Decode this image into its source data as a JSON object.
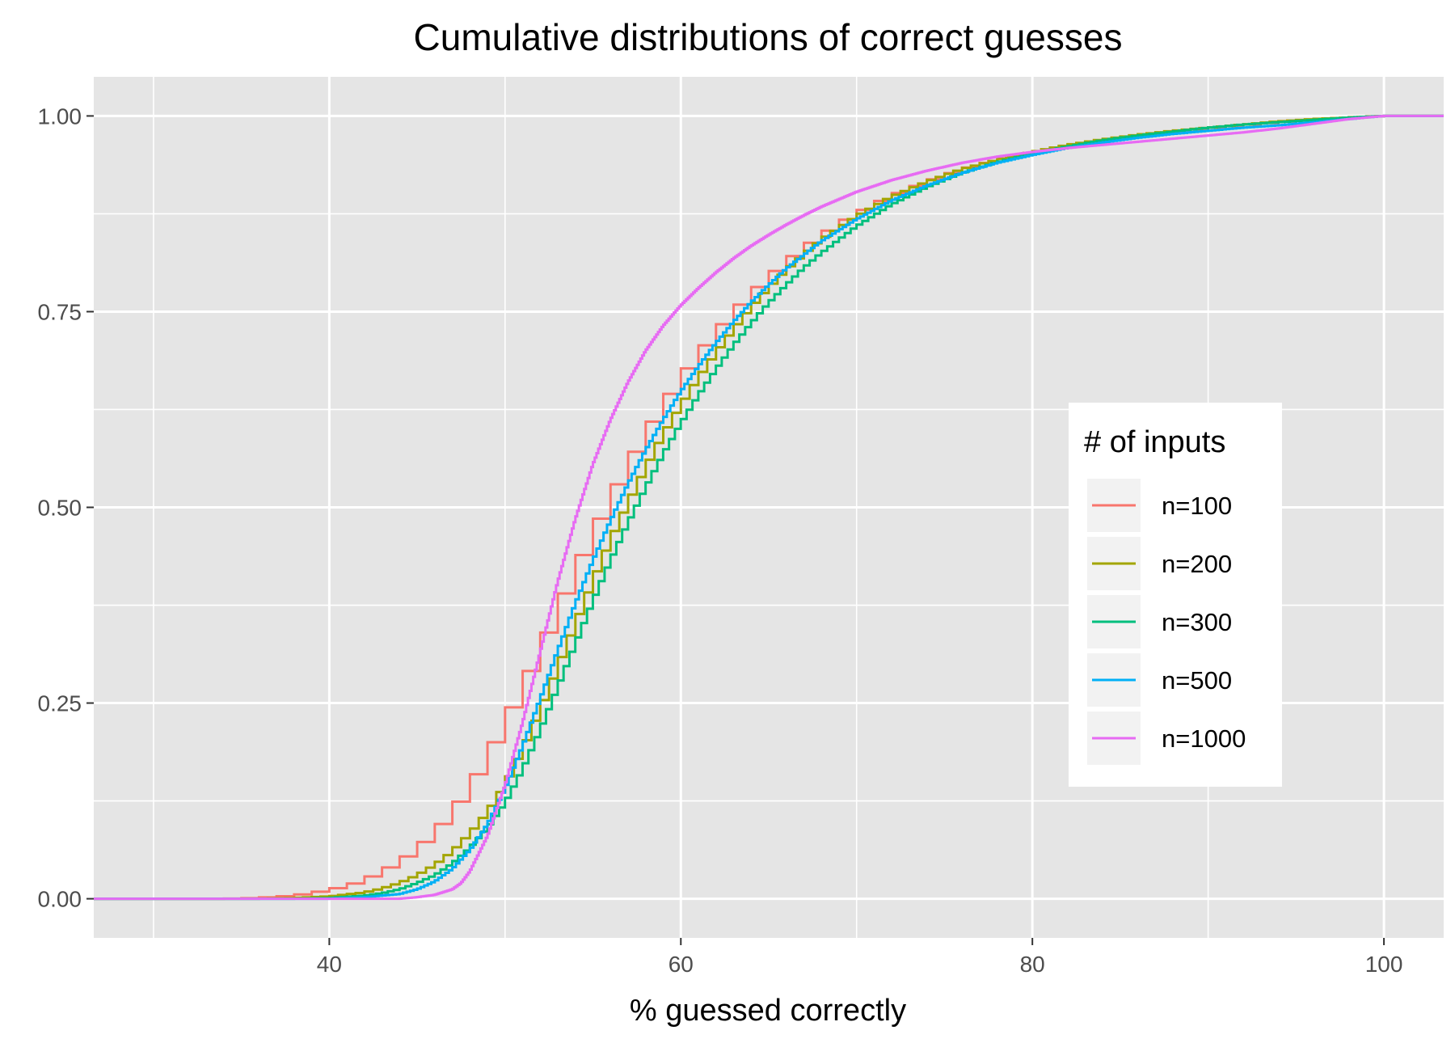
{
  "chart_data": {
    "type": "line",
    "step": true,
    "title": "Cumulative distributions of correct guesses",
    "xlabel": "% guessed correctly",
    "ylabel": "",
    "xlim": [
      26.6,
      103.4
    ],
    "ylim": [
      -0.05,
      1.05
    ],
    "x_ticks": [
      40,
      60,
      80,
      100
    ],
    "x_tick_labels": [
      "40",
      "60",
      "80",
      "100"
    ],
    "y_ticks": [
      0,
      0.25,
      0.5,
      0.75,
      1
    ],
    "y_tick_labels": [
      "0.00",
      "0.25",
      "0.50",
      "0.75",
      "1.00"
    ],
    "grid": true,
    "background": "#e5e5e5",
    "legend": {
      "title": "# of inputs",
      "position": "right"
    },
    "series": [
      {
        "name": "n=100",
        "color": "#F8766D",
        "step_size": 1,
        "points": [
          [
            26,
            0
          ],
          [
            34,
            0
          ],
          [
            36,
            0.001
          ],
          [
            38,
            0.004
          ],
          [
            39,
            0.007
          ],
          [
            40,
            0.011
          ],
          [
            41,
            0.016
          ],
          [
            42,
            0.023
          ],
          [
            43,
            0.034
          ],
          [
            44,
            0.046
          ],
          [
            45,
            0.062
          ],
          [
            46,
            0.083
          ],
          [
            47,
            0.108
          ],
          [
            48,
            0.14
          ],
          [
            49,
            0.178
          ],
          [
            50,
            0.222
          ],
          [
            51,
            0.267
          ],
          [
            52,
            0.315
          ],
          [
            53,
            0.365
          ],
          [
            54,
            0.415
          ],
          [
            55,
            0.463
          ],
          [
            56,
            0.508
          ],
          [
            57,
            0.551
          ],
          [
            58,
            0.591
          ],
          [
            59,
            0.628
          ],
          [
            60,
            0.662
          ],
          [
            61,
            0.693
          ],
          [
            62,
            0.721
          ],
          [
            63,
            0.747
          ],
          [
            64,
            0.771
          ],
          [
            65,
            0.792
          ],
          [
            66,
            0.812
          ],
          [
            67,
            0.83
          ],
          [
            68,
            0.846
          ],
          [
            69,
            0.861
          ],
          [
            70,
            0.874
          ],
          [
            71,
            0.886
          ],
          [
            72,
            0.897
          ],
          [
            73,
            0.906
          ],
          [
            74,
            0.915
          ],
          [
            75,
            0.923
          ],
          [
            76,
            0.931
          ],
          [
            77,
            0.937
          ],
          [
            78,
            0.943
          ],
          [
            79,
            0.948
          ],
          [
            80,
            0.953
          ],
          [
            82,
            0.961
          ],
          [
            84,
            0.968
          ],
          [
            86,
            0.974
          ],
          [
            88,
            0.979
          ],
          [
            90,
            0.984
          ],
          [
            92,
            0.988
          ],
          [
            94,
            0.992
          ],
          [
            96,
            0.995
          ],
          [
            98,
            0.998
          ],
          [
            100,
            1
          ],
          [
            104,
            1
          ]
        ]
      },
      {
        "name": "n=200",
        "color": "#A3A500",
        "step_size": 0.5,
        "points": [
          [
            26,
            0
          ],
          [
            36,
            0
          ],
          [
            38,
            0.001
          ],
          [
            40,
            0.003
          ],
          [
            42,
            0.008
          ],
          [
            43,
            0.013
          ],
          [
            44,
            0.02
          ],
          [
            45,
            0.03
          ],
          [
            46,
            0.043
          ],
          [
            47,
            0.06
          ],
          [
            48,
            0.083
          ],
          [
            49,
            0.11
          ],
          [
            50,
            0.145
          ],
          [
            51,
            0.19
          ],
          [
            52,
            0.24
          ],
          [
            53,
            0.295
          ],
          [
            54,
            0.35
          ],
          [
            55,
            0.405
          ],
          [
            56,
            0.458
          ],
          [
            57,
            0.505
          ],
          [
            58,
            0.55
          ],
          [
            59,
            0.593
          ],
          [
            60,
            0.63
          ],
          [
            61,
            0.665
          ],
          [
            62,
            0.697
          ],
          [
            63,
            0.727
          ],
          [
            64,
            0.755
          ],
          [
            65,
            0.78
          ],
          [
            66,
            0.803
          ],
          [
            67,
            0.823
          ],
          [
            68,
            0.842
          ],
          [
            70,
            0.872
          ],
          [
            72,
            0.897
          ],
          [
            74,
            0.916
          ],
          [
            76,
            0.932
          ],
          [
            78,
            0.944
          ],
          [
            80,
            0.954
          ],
          [
            82,
            0.963
          ],
          [
            84,
            0.97
          ],
          [
            86,
            0.976
          ],
          [
            88,
            0.981
          ],
          [
            90,
            0.985
          ],
          [
            92,
            0.989
          ],
          [
            94,
            0.993
          ],
          [
            96,
            0.996
          ],
          [
            98,
            0.998
          ],
          [
            100,
            1
          ],
          [
            104,
            1
          ]
        ]
      },
      {
        "name": "n=300",
        "color": "#00BF7D",
        "step_size": 0.3333,
        "points": [
          [
            26,
            0
          ],
          [
            38,
            0
          ],
          [
            40,
            0.001
          ],
          [
            42,
            0.004
          ],
          [
            43,
            0.007
          ],
          [
            44,
            0.012
          ],
          [
            45,
            0.02
          ],
          [
            46,
            0.03
          ],
          [
            47,
            0.045
          ],
          [
            48,
            0.065
          ],
          [
            49,
            0.09
          ],
          [
            50,
            0.122
          ],
          [
            51,
            0.165
          ],
          [
            52,
            0.215
          ],
          [
            53,
            0.27
          ],
          [
            54,
            0.325
          ],
          [
            55,
            0.38
          ],
          [
            56,
            0.432
          ],
          [
            57,
            0.48
          ],
          [
            58,
            0.525
          ],
          [
            59,
            0.568
          ],
          [
            60,
            0.607
          ],
          [
            61,
            0.643
          ],
          [
            62,
            0.676
          ],
          [
            63,
            0.707
          ],
          [
            64,
            0.735
          ],
          [
            65,
            0.761
          ],
          [
            66,
            0.784
          ],
          [
            67,
            0.806
          ],
          [
            68,
            0.825
          ],
          [
            70,
            0.859
          ],
          [
            72,
            0.887
          ],
          [
            74,
            0.909
          ],
          [
            76,
            0.927
          ],
          [
            78,
            0.941
          ],
          [
            80,
            0.952
          ],
          [
            82,
            0.961
          ],
          [
            84,
            0.969
          ],
          [
            86,
            0.975
          ],
          [
            88,
            0.98
          ],
          [
            90,
            0.985
          ],
          [
            92,
            0.989
          ],
          [
            94,
            0.992
          ],
          [
            96,
            0.995
          ],
          [
            98,
            0.998
          ],
          [
            100,
            1
          ],
          [
            104,
            1
          ]
        ]
      },
      {
        "name": "n=500",
        "color": "#00B0F6",
        "step_size": 0.2,
        "points": [
          [
            26,
            0
          ],
          [
            40,
            0
          ],
          [
            42,
            0.002
          ],
          [
            44,
            0.006
          ],
          [
            45,
            0.012
          ],
          [
            46,
            0.022
          ],
          [
            47,
            0.038
          ],
          [
            48,
            0.062
          ],
          [
            49,
            0.095
          ],
          [
            50,
            0.14
          ],
          [
            51,
            0.195
          ],
          [
            52,
            0.255
          ],
          [
            53,
            0.317
          ],
          [
            54,
            0.377
          ],
          [
            55,
            0.432
          ],
          [
            56,
            0.483
          ],
          [
            57,
            0.53
          ],
          [
            58,
            0.573
          ],
          [
            59,
            0.612
          ],
          [
            60,
            0.648
          ],
          [
            61,
            0.68
          ],
          [
            62,
            0.71
          ],
          [
            63,
            0.737
          ],
          [
            64,
            0.762
          ],
          [
            65,
            0.784
          ],
          [
            66,
            0.805
          ],
          [
            68,
            0.84
          ],
          [
            70,
            0.868
          ],
          [
            72,
            0.892
          ],
          [
            74,
            0.911
          ],
          [
            76,
            0.927
          ],
          [
            78,
            0.94
          ],
          [
            80,
            0.95
          ],
          [
            82,
            0.959
          ],
          [
            84,
            0.966
          ],
          [
            86,
            0.972
          ],
          [
            88,
            0.977
          ],
          [
            90,
            0.981
          ],
          [
            92,
            0.985
          ],
          [
            94,
            0.988
          ],
          [
            96,
            0.992
          ],
          [
            98,
            0.996
          ],
          [
            100,
            1
          ],
          [
            104,
            1
          ]
        ]
      },
      {
        "name": "n=1000",
        "color": "#E76BF3",
        "step_size": 0.1,
        "points": [
          [
            26,
            0
          ],
          [
            44,
            0
          ],
          [
            45,
            0.002
          ],
          [
            46,
            0.005
          ],
          [
            47,
            0.012
          ],
          [
            47.5,
            0.02
          ],
          [
            48,
            0.035
          ],
          [
            49,
            0.08
          ],
          [
            50,
            0.145
          ],
          [
            51,
            0.225
          ],
          [
            52,
            0.315
          ],
          [
            53,
            0.405
          ],
          [
            54,
            0.485
          ],
          [
            55,
            0.555
          ],
          [
            56,
            0.612
          ],
          [
            57,
            0.66
          ],
          [
            58,
            0.7
          ],
          [
            59,
            0.732
          ],
          [
            60,
            0.758
          ],
          [
            61,
            0.78
          ],
          [
            62,
            0.8
          ],
          [
            63,
            0.818
          ],
          [
            64,
            0.834
          ],
          [
            65,
            0.848
          ],
          [
            66,
            0.861
          ],
          [
            67,
            0.873
          ],
          [
            68,
            0.884
          ],
          [
            70,
            0.903
          ],
          [
            72,
            0.918
          ],
          [
            74,
            0.93
          ],
          [
            76,
            0.94
          ],
          [
            78,
            0.948
          ],
          [
            80,
            0.954
          ],
          [
            82,
            0.959
          ],
          [
            84,
            0.963
          ],
          [
            86,
            0.967
          ],
          [
            88,
            0.971
          ],
          [
            90,
            0.975
          ],
          [
            92,
            0.979
          ],
          [
            94,
            0.984
          ],
          [
            96,
            0.99
          ],
          [
            98,
            0.996
          ],
          [
            100,
            1
          ],
          [
            104,
            1
          ]
        ]
      }
    ]
  }
}
